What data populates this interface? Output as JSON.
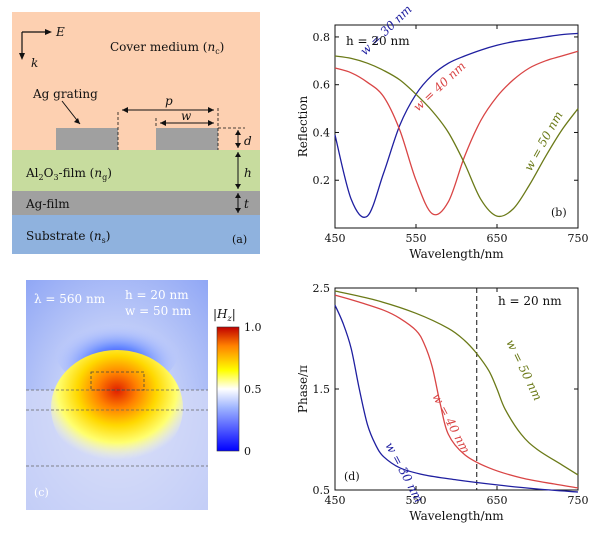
{
  "panel_a": {
    "tag": "(a)",
    "axis_e": "E",
    "axis_k": "k",
    "cover": "Cover medium (",
    "cover_sym": "n",
    "cover_sub": "c",
    "cover_end": ")",
    "grating": "Ag grating",
    "p": "p",
    "w": "w",
    "d": "d",
    "h": "h",
    "t": "t",
    "film_pre": "Al",
    "film_2": "2",
    "film_o": "O",
    "film_3": "3",
    "film_post": "-film (",
    "film_sym": "n",
    "film_sub": "g",
    "film_end": ")",
    "agfilm": "Ag-film",
    "substrate": "Substrate (",
    "sub_sym": "n",
    "sub_sub": "s",
    "sub_end": ")",
    "colors": {
      "cover": "#fdd0b1",
      "film": "#c7dc9e",
      "ag": "#a0a0a0",
      "substrate": "#8fb2de"
    }
  },
  "panel_c": {
    "tag": "(c)",
    "lambda": "λ = 560 nm",
    "h": "h = 20 nm",
    "w": "w = 50 nm",
    "cbar_label": "|H",
    "cbar_sub": "z",
    "cbar_end": "|",
    "cbar_ticks": [
      "1.0",
      "0.5",
      "0"
    ]
  },
  "chart_data": [
    {
      "type": "line",
      "panel": "(b)",
      "annotation": "h = 20 nm",
      "xlabel": "Wavelength/nm",
      "ylabel": "Reflection",
      "xlim": [
        450,
        750
      ],
      "ylim": [
        0.0,
        0.85
      ],
      "xticks": [
        "450",
        "550",
        "650",
        "750"
      ],
      "yticks": [
        "0.2",
        "0.4",
        "0.6",
        "0.8"
      ],
      "series": [
        {
          "name": "w = 30 nm",
          "color": "#1f1fa0",
          "x": [
            450,
            470,
            490,
            510,
            530,
            550,
            570,
            590,
            610,
            630,
            650,
            670,
            690,
            710,
            730,
            750
          ],
          "y": [
            0.39,
            0.12,
            0.05,
            0.23,
            0.43,
            0.56,
            0.64,
            0.69,
            0.72,
            0.745,
            0.765,
            0.78,
            0.79,
            0.8,
            0.81,
            0.815
          ]
        },
        {
          "name": "w = 40 nm",
          "color": "#d94545",
          "x": [
            450,
            470,
            490,
            510,
            530,
            550,
            570,
            590,
            610,
            630,
            650,
            670,
            690,
            710,
            730,
            750
          ],
          "y": [
            0.67,
            0.65,
            0.61,
            0.55,
            0.41,
            0.2,
            0.06,
            0.11,
            0.3,
            0.45,
            0.55,
            0.62,
            0.67,
            0.7,
            0.72,
            0.74
          ]
        },
        {
          "name": "w = 50 nm",
          "color": "#6b7a18",
          "x": [
            450,
            470,
            490,
            510,
            530,
            550,
            570,
            590,
            610,
            630,
            650,
            670,
            690,
            710,
            730,
            750
          ],
          "y": [
            0.72,
            0.71,
            0.69,
            0.66,
            0.62,
            0.56,
            0.49,
            0.4,
            0.27,
            0.12,
            0.05,
            0.08,
            0.18,
            0.3,
            0.41,
            0.5
          ]
        }
      ]
    },
    {
      "type": "line",
      "panel": "(d)",
      "annotation": "h = 20 nm",
      "xlabel": "Wavelength/nm",
      "ylabel": "Phase/π",
      "xlim": [
        450,
        750
      ],
      "ylim": [
        0.5,
        2.5
      ],
      "xticks": [
        "450",
        "550",
        "650",
        "750"
      ],
      "yticks": [
        "0.5",
        "1.5",
        "2.5"
      ],
      "vline": 625,
      "series": [
        {
          "name": "w = 30 nm",
          "color": "#1f1fa0",
          "x": [
            450,
            460,
            470,
            480,
            490,
            500,
            510,
            530,
            560,
            600,
            650,
            700,
            750
          ],
          "y": [
            2.33,
            2.15,
            1.9,
            1.5,
            1.15,
            0.95,
            0.83,
            0.72,
            0.65,
            0.6,
            0.55,
            0.51,
            0.48
          ]
        },
        {
          "name": "w = 40 nm",
          "color": "#d94545",
          "x": [
            450,
            480,
            510,
            530,
            550,
            560,
            570,
            580,
            590,
            610,
            640,
            680,
            720,
            750
          ],
          "y": [
            2.43,
            2.36,
            2.28,
            2.2,
            2.08,
            1.95,
            1.72,
            1.35,
            1.05,
            0.85,
            0.72,
            0.62,
            0.56,
            0.52
          ]
        },
        {
          "name": "w = 50 nm",
          "color": "#6b7a18",
          "x": [
            450,
            500,
            550,
            590,
            610,
            625,
            640,
            650,
            660,
            680,
            700,
            730,
            750
          ],
          "y": [
            2.47,
            2.38,
            2.25,
            2.1,
            1.98,
            1.85,
            1.68,
            1.5,
            1.3,
            1.05,
            0.9,
            0.75,
            0.65
          ]
        }
      ]
    }
  ]
}
